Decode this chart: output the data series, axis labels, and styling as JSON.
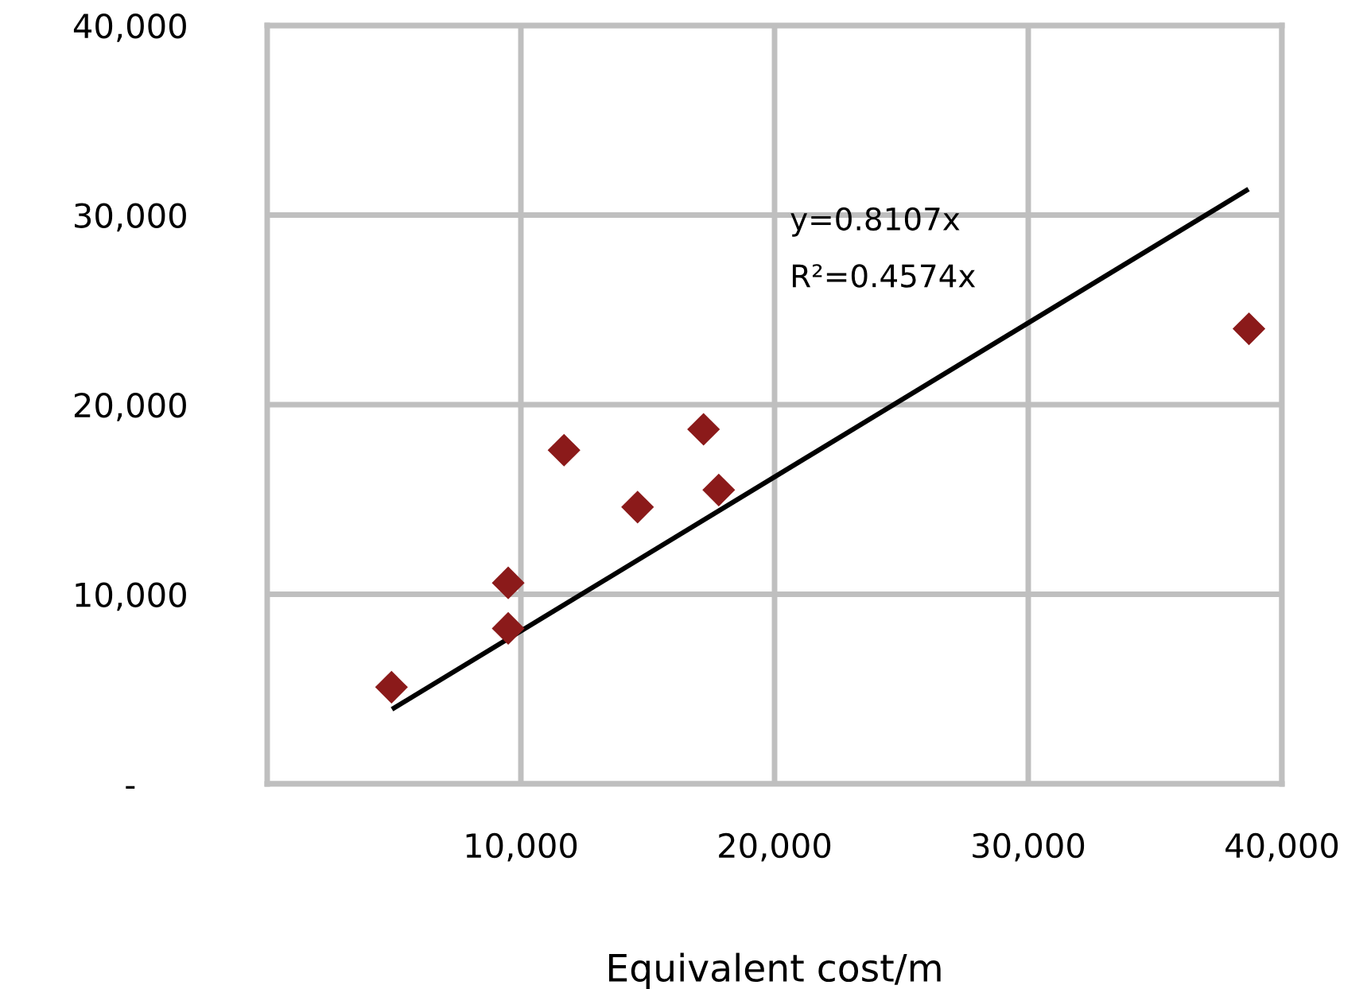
{
  "chart_data": {
    "type": "scatter",
    "xlabel": "Equivalent cost/m",
    "xlim": [
      0,
      40000
    ],
    "ylim": [
      0,
      40000
    ],
    "xticks": [
      {
        "value": 10000,
        "label": "10,000"
      },
      {
        "value": 20000,
        "label": "20,000"
      },
      {
        "value": 30000,
        "label": "30,000"
      },
      {
        "value": 40000,
        "label": "40,000"
      }
    ],
    "yticks": [
      {
        "value": 0,
        "label": "-"
      },
      {
        "value": 10000,
        "label": "10,000"
      },
      {
        "value": 20000,
        "label": "20,000"
      },
      {
        "value": 30000,
        "label": "30,000"
      },
      {
        "value": 40000,
        "label": "40,000"
      }
    ],
    "grid": true,
    "marker": "diamond",
    "legend": false,
    "series": [
      {
        "color": "#8b1a1a",
        "x": [
          4900,
          9500,
          9500,
          11700,
          14600,
          17200,
          17800,
          38700
        ],
        "values": [
          5100,
          10600,
          8200,
          17600,
          14600,
          18700,
          15500,
          24000
        ]
      },
      {
        "type": "line",
        "marker": "none",
        "color": "#000000",
        "x": [
          5000,
          38600
        ],
        "values": [
          4000,
          31300
        ]
      }
    ],
    "annotations": [
      "y=0.8107x",
      "R²=0.4574x"
    ]
  }
}
